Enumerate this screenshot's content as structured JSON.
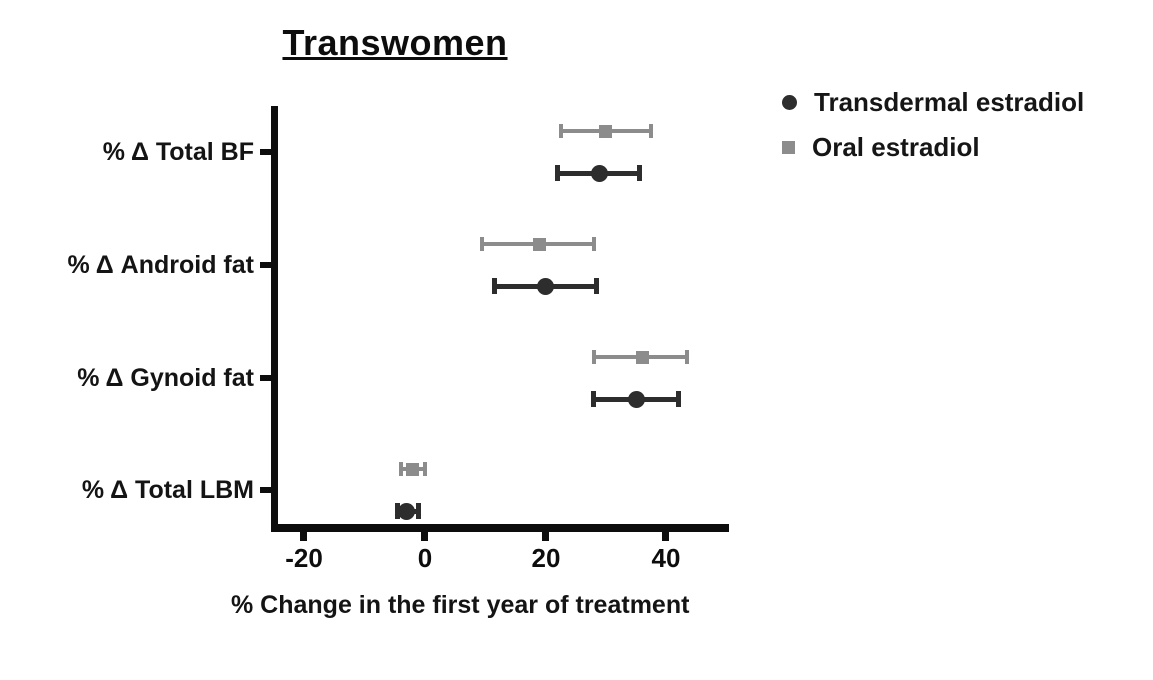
{
  "chart_data": {
    "type": "scatter",
    "variant": "forest-dot-plot-with-error-bars",
    "title": "Transwomen",
    "xlabel": "% Change in the first year of treatment",
    "ylabel": "",
    "categories": [
      "% Δ Total BF",
      "% Δ Android fat",
      "% Δ Gynoid fat",
      "% Δ Total LBM"
    ],
    "x_ticks": [
      -20,
      0,
      20,
      40
    ],
    "xlim": [
      -25.5,
      50.5
    ],
    "grid": false,
    "legend_position": "top-right",
    "legend": [
      {
        "label": "Transdermal estradiol",
        "marker": "circle",
        "color": "#2d2d2d"
      },
      {
        "label": "Oral estradiol",
        "marker": "square",
        "color": "#8c8c8c"
      }
    ],
    "series": [
      {
        "name": "Oral estradiol",
        "marker": "square",
        "color": "#8c8c8c",
        "values": [
          30,
          19,
          36,
          -2
        ],
        "ci_low": [
          22.5,
          9.5,
          28,
          -4
        ],
        "ci_high": [
          37.5,
          28,
          43.5,
          0
        ]
      },
      {
        "name": "Transdermal estradiol",
        "marker": "circle",
        "color": "#2d2d2d",
        "values": [
          29,
          20,
          35,
          -3
        ],
        "ci_low": [
          22,
          11.5,
          28,
          -4.5
        ],
        "ci_high": [
          35.5,
          28.5,
          42,
          -1
        ]
      }
    ]
  }
}
